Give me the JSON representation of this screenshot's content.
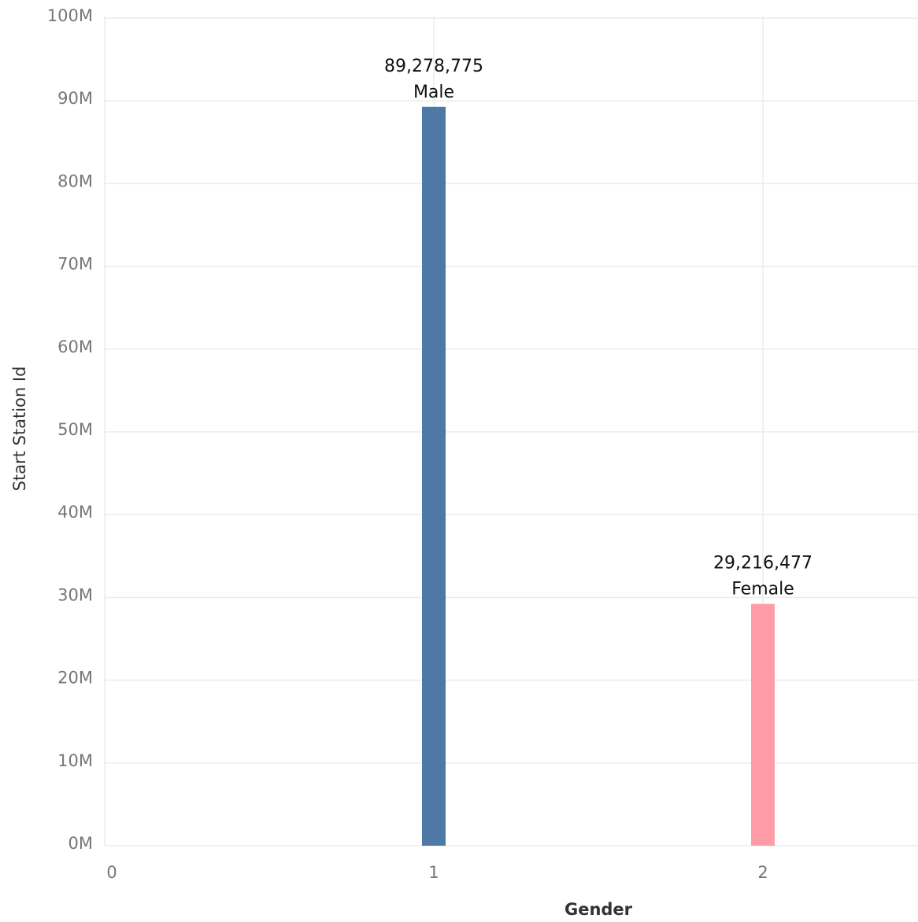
{
  "chart_data": {
    "type": "bar",
    "title": "",
    "xlabel": "Gender",
    "ylabel": "Start Station Id",
    "ylim": [
      0,
      100000000
    ],
    "xlim": [
      -0.2,
      2.3
    ],
    "x_ticks": [
      "0",
      "1",
      "2"
    ],
    "y_ticks": [
      "0M",
      "10M",
      "20M",
      "30M",
      "40M",
      "50M",
      "60M",
      "70M",
      "80M",
      "90M",
      "100M"
    ],
    "grid": true,
    "bars": [
      {
        "x": 1,
        "value": 89278775,
        "value_label": "89,278,775",
        "category": "Male",
        "color": "#4e79a7"
      },
      {
        "x": 2,
        "value": 29216477,
        "value_label": "29,216,477",
        "category": "Female",
        "color": "#ff9da7"
      }
    ]
  }
}
